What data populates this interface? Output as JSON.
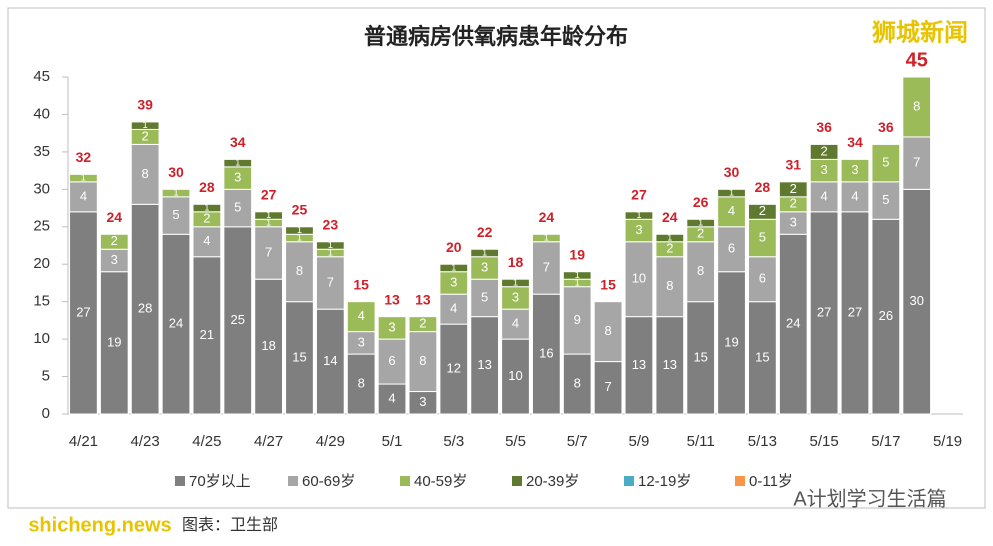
{
  "chart_data": {
    "type": "stacked_bar",
    "title": "普通病房供氧病患年龄分布",
    "categories": [
      "4/21",
      null,
      "4/23",
      null,
      "4/25",
      null,
      "4/27",
      null,
      "4/29",
      null,
      "5/1",
      null,
      "5/3",
      null,
      "5/5",
      null,
      "5/7",
      null,
      "5/9",
      null,
      "5/11",
      null,
      "5/13",
      null,
      "5/15",
      null,
      "5/17",
      null,
      "5/19"
    ],
    "series": [
      {
        "name": "70岁以上",
        "color": "#7f7f7f",
        "values": [
          27,
          19,
          28,
          24,
          21,
          25,
          18,
          15,
          14,
          8,
          4,
          3,
          12,
          13,
          10,
          16,
          8,
          7,
          13,
          13,
          15,
          19,
          15,
          24,
          27,
          27,
          26,
          30,
          null
        ]
      },
      {
        "name": "60-69岁",
        "color": "#a6a6a6",
        "values": [
          4,
          3,
          8,
          5,
          4,
          5,
          7,
          8,
          7,
          3,
          6,
          8,
          4,
          5,
          4,
          7,
          9,
          8,
          10,
          8,
          8,
          6,
          6,
          3,
          4,
          4,
          5,
          7,
          null
        ]
      },
      {
        "name": "40-59岁",
        "color": "#9bbb59",
        "values": [
          1,
          2,
          2,
          1,
          2,
          3,
          1,
          1,
          1,
          4,
          3,
          2,
          3,
          3,
          3,
          1,
          1,
          0,
          3,
          2,
          2,
          4,
          5,
          2,
          3,
          3,
          5,
          8,
          null
        ]
      },
      {
        "name": "20-39岁",
        "color": "#5f7a2e",
        "values": [
          0,
          0,
          1,
          0,
          1,
          1,
          1,
          1,
          1,
          0,
          0,
          0,
          1,
          1,
          1,
          0,
          1,
          0,
          1,
          1,
          1,
          1,
          2,
          2,
          2,
          0,
          0,
          0,
          null
        ]
      },
      {
        "name": "12-19岁",
        "color": "#4bacc6",
        "values": [
          0,
          0,
          0,
          0,
          0,
          0,
          0,
          0,
          0,
          0,
          0,
          0,
          0,
          0,
          0,
          0,
          0,
          0,
          0,
          0,
          0,
          0,
          0,
          0,
          0,
          0,
          0,
          0,
          null
        ]
      },
      {
        "name": "0-11岁",
        "color": "#f79646",
        "values": [
          0,
          0,
          0,
          0,
          0,
          0,
          0,
          0,
          0,
          0,
          0,
          0,
          0,
          0,
          0,
          0,
          0,
          0,
          0,
          0,
          0,
          0,
          0,
          0,
          0,
          0,
          0,
          0,
          null
        ]
      }
    ],
    "totals": [
      32,
      24,
      39,
      30,
      28,
      34,
      27,
      25,
      23,
      15,
      13,
      13,
      20,
      22,
      18,
      24,
      19,
      15,
      27,
      24,
      26,
      30,
      28,
      31,
      36,
      34,
      36,
      45,
      null
    ],
    "ylim": [
      0,
      45
    ],
    "yticks": [
      0,
      5,
      10,
      15,
      20,
      25,
      30,
      35,
      40,
      45
    ],
    "legend": "bottom",
    "annotations": [
      "狮城新闻",
      "A计划学习生活篇",
      "shicheng.news",
      "图表：卫生部"
    ]
  }
}
